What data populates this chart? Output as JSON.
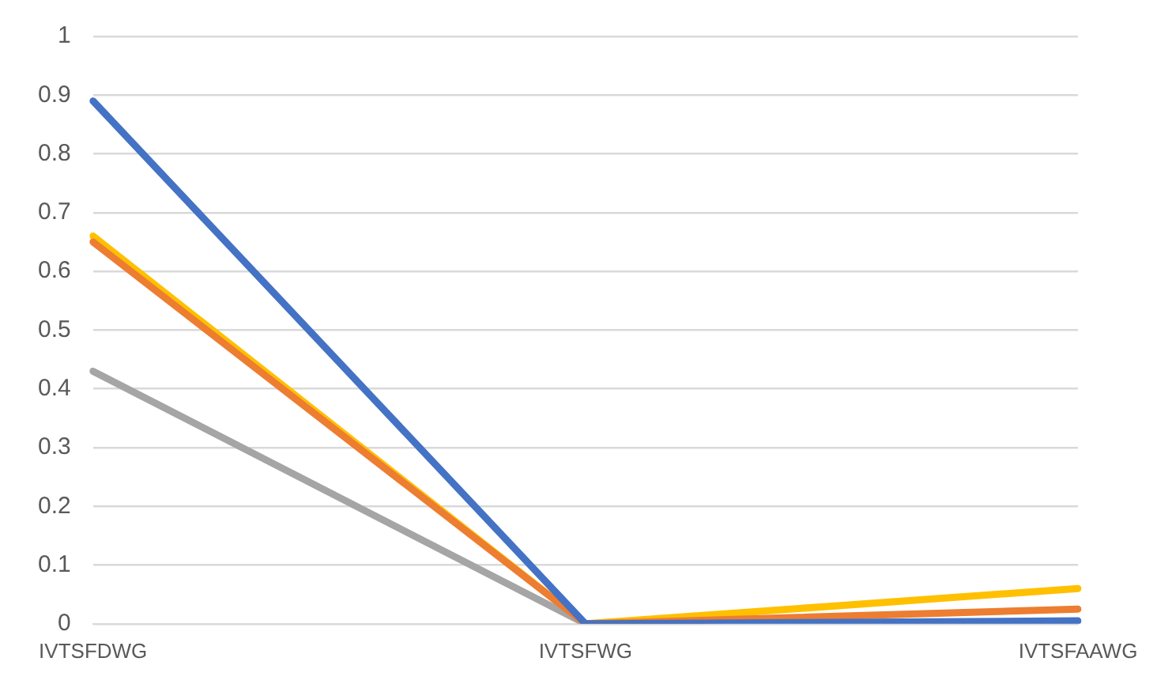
{
  "chart_data": {
    "type": "line",
    "categories": [
      "IVTSFDWG",
      "IVTSFWG",
      "IVTSFAAWG"
    ],
    "series": [
      {
        "color": "#4472c4",
        "values": [
          0.89,
          0,
          0.005
        ]
      },
      {
        "color": "#ed7d31",
        "values": [
          0.65,
          0,
          0.025
        ]
      },
      {
        "color": "#a5a5a5",
        "values": [
          0.43,
          0,
          null
        ]
      },
      {
        "color": "#ffc000",
        "values": [
          0.66,
          0,
          0.06
        ]
      }
    ],
    "ylim": [
      0,
      1
    ],
    "yticks": [
      0,
      0.1,
      0.2,
      0.3,
      0.4,
      0.5,
      0.6,
      0.7,
      0.8,
      0.9,
      1
    ],
    "grid": "y",
    "marker": "none",
    "line_style": "solid",
    "legend": false
  }
}
